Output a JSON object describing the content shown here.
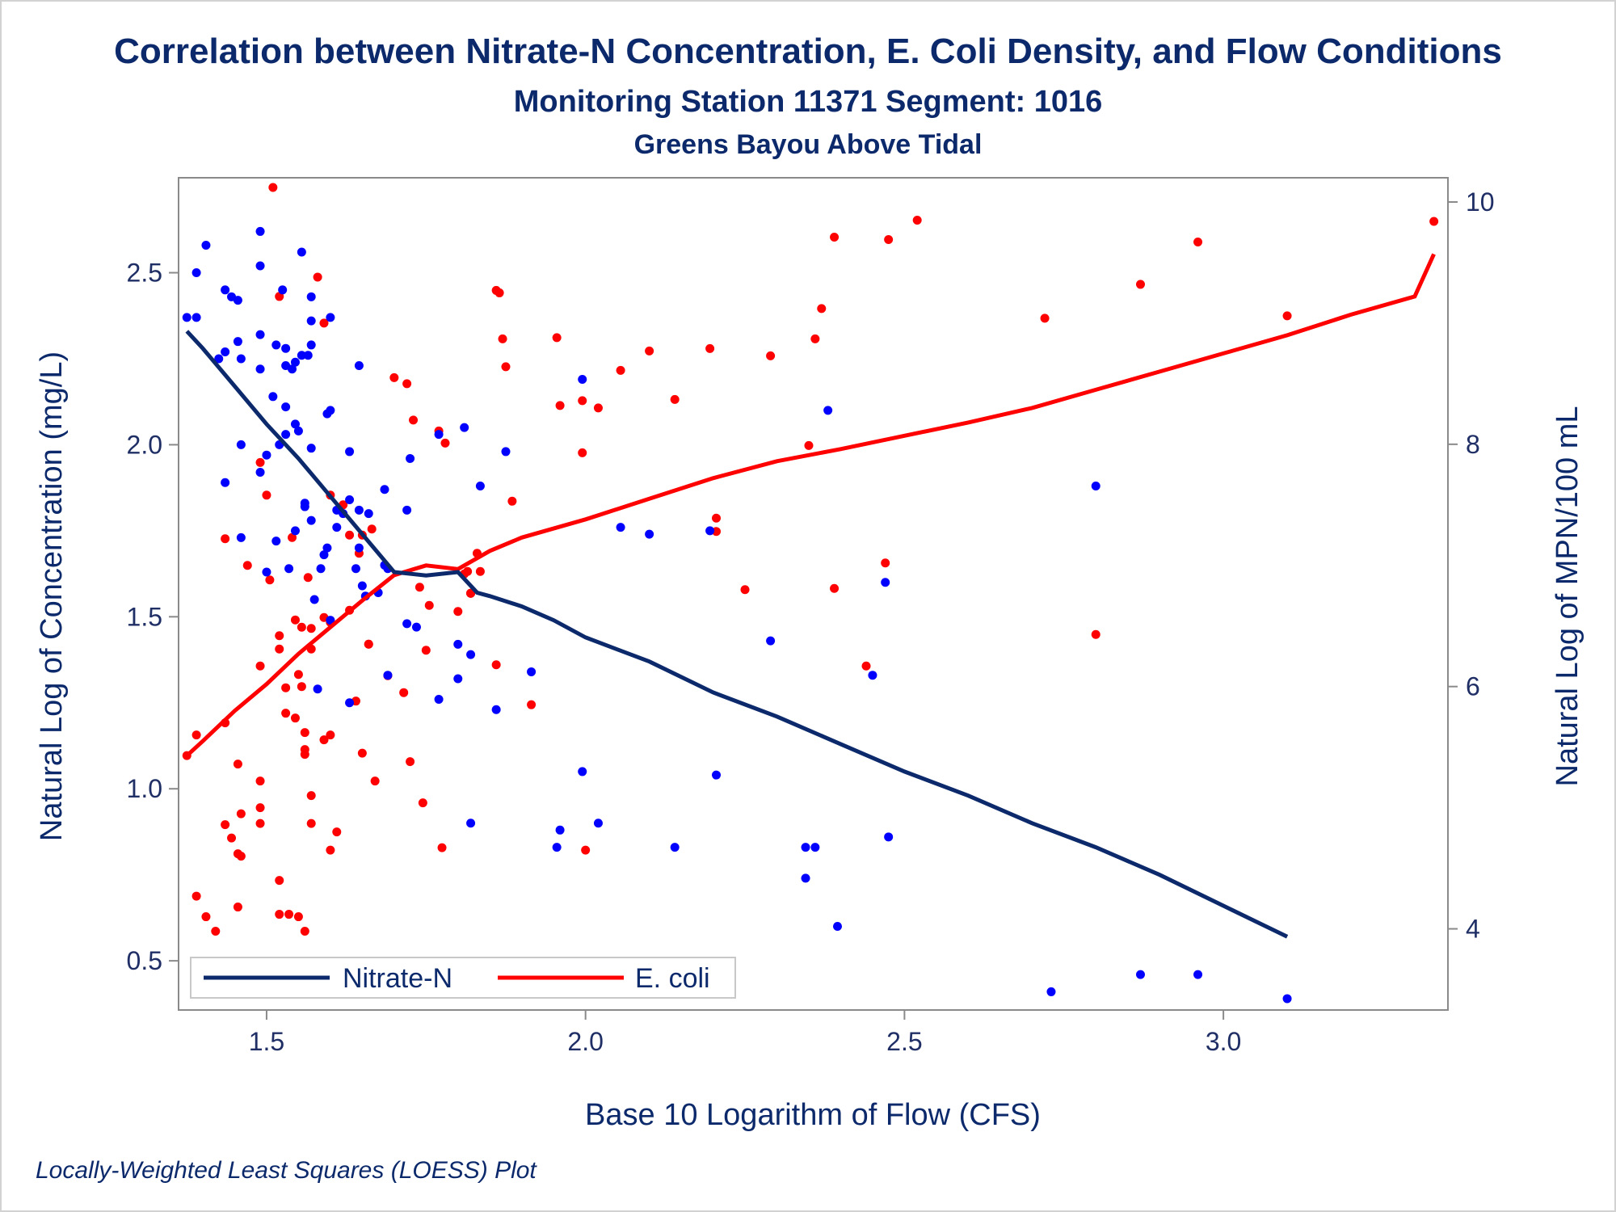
{
  "chart_data": {
    "type": "scatter",
    "title": "Correlation between Nitrate-N Concentration, E. Coli Density, and Flow Conditions",
    "subtitle": "Monitoring Station 11371 Segment: 1016",
    "subtitle2": "Greens Bayou Above Tidal",
    "xlabel": "Base 10 Logarithm of Flow (CFS)",
    "ylabel_left": "Natural Log of Concentration (mg/L)",
    "ylabel_right": "Natural Log of MPN/100 mL",
    "footnote": "Locally-Weighted Least Squares (LOESS) Plot",
    "xlim": [
      1.362,
      3.352
    ],
    "ylim_left": [
      0.357,
      2.776
    ],
    "ylim_right": [
      3.33,
      10.2
    ],
    "xticks": [
      "1.5",
      "2.0",
      "2.5",
      "3.0"
    ],
    "yticks_left": [
      "0.5",
      "1.0",
      "1.5",
      "2.0",
      "2.5"
    ],
    "yticks_right": [
      "4",
      "6",
      "8",
      "10"
    ],
    "colors": {
      "nitrate": "#0000ff",
      "nitrate_line": "#0c2a6b",
      "ecoli": "#ff0000",
      "ecoli_line": "#ff0000",
      "text": "#0c2a6b"
    },
    "legend": {
      "placement": "bottom-left",
      "entries": [
        "Nitrate-N",
        "E. coli"
      ]
    },
    "series": [
      {
        "name": "Nitrate-N",
        "axis": "left",
        "points": [
          [
            1.375,
            2.37
          ],
          [
            1.39,
            2.37
          ],
          [
            1.39,
            2.5
          ],
          [
            1.405,
            2.58
          ],
          [
            1.425,
            2.25
          ],
          [
            1.435,
            2.27
          ],
          [
            1.435,
            2.45
          ],
          [
            1.445,
            2.43
          ],
          [
            1.455,
            2.42
          ],
          [
            1.455,
            2.3
          ],
          [
            1.46,
            2.25
          ],
          [
            1.46,
            2.0
          ],
          [
            1.46,
            1.73
          ],
          [
            1.435,
            1.89
          ],
          [
            1.49,
            2.32
          ],
          [
            1.49,
            2.22
          ],
          [
            1.49,
            2.62
          ],
          [
            1.49,
            2.52
          ],
          [
            1.49,
            1.92
          ],
          [
            1.5,
            1.97
          ],
          [
            1.5,
            1.63
          ],
          [
            1.51,
            2.14
          ],
          [
            1.515,
            2.29
          ],
          [
            1.515,
            1.72
          ],
          [
            1.52,
            2.0
          ],
          [
            1.525,
            2.45
          ],
          [
            1.53,
            2.28
          ],
          [
            1.53,
            2.23
          ],
          [
            1.53,
            2.11
          ],
          [
            1.53,
            2.03
          ],
          [
            1.535,
            1.64
          ],
          [
            1.54,
            2.22
          ],
          [
            1.545,
            2.24
          ],
          [
            1.545,
            2.06
          ],
          [
            1.545,
            1.75
          ],
          [
            1.55,
            2.04
          ],
          [
            1.555,
            2.26
          ],
          [
            1.555,
            2.56
          ],
          [
            1.56,
            1.83
          ],
          [
            1.56,
            1.82
          ],
          [
            1.565,
            2.26
          ],
          [
            1.57,
            2.43
          ],
          [
            1.57,
            2.36
          ],
          [
            1.57,
            2.29
          ],
          [
            1.57,
            1.78
          ],
          [
            1.57,
            1.99
          ],
          [
            1.575,
            1.55
          ],
          [
            1.58,
            1.29
          ],
          [
            1.585,
            1.64
          ],
          [
            1.59,
            1.68
          ],
          [
            1.595,
            1.7
          ],
          [
            1.595,
            2.09
          ],
          [
            1.6,
            2.1
          ],
          [
            1.6,
            2.37
          ],
          [
            1.6,
            1.49
          ],
          [
            1.61,
            1.81
          ],
          [
            1.61,
            1.76
          ],
          [
            1.62,
            1.8
          ],
          [
            1.63,
            1.84
          ],
          [
            1.63,
            1.98
          ],
          [
            1.63,
            1.25
          ],
          [
            1.64,
            1.64
          ],
          [
            1.645,
            2.23
          ],
          [
            1.645,
            1.7
          ],
          [
            1.645,
            1.81
          ],
          [
            1.65,
            1.59
          ],
          [
            1.655,
            1.56
          ],
          [
            1.66,
            1.8
          ],
          [
            1.675,
            1.57
          ],
          [
            1.685,
            1.87
          ],
          [
            1.685,
            1.65
          ],
          [
            1.69,
            1.64
          ],
          [
            1.69,
            1.33
          ],
          [
            1.72,
            1.48
          ],
          [
            1.72,
            1.81
          ],
          [
            1.725,
            1.96
          ],
          [
            1.735,
            1.47
          ],
          [
            1.77,
            1.26
          ],
          [
            1.77,
            2.03
          ],
          [
            1.8,
            1.42
          ],
          [
            1.8,
            1.32
          ],
          [
            1.81,
            2.05
          ],
          [
            1.82,
            1.39
          ],
          [
            1.82,
            0.9
          ],
          [
            1.835,
            1.88
          ],
          [
            1.86,
            1.23
          ],
          [
            1.875,
            1.98
          ],
          [
            1.915,
            1.34
          ],
          [
            1.955,
            0.83
          ],
          [
            1.96,
            0.88
          ],
          [
            1.995,
            1.05
          ],
          [
            1.995,
            2.19
          ],
          [
            2.02,
            0.9
          ],
          [
            2.055,
            1.76
          ],
          [
            2.1,
            1.74
          ],
          [
            2.14,
            0.83
          ],
          [
            2.195,
            1.75
          ],
          [
            2.205,
            1.04
          ],
          [
            2.29,
            1.43
          ],
          [
            2.345,
            0.74
          ],
          [
            2.345,
            0.83
          ],
          [
            2.36,
            0.83
          ],
          [
            2.38,
            2.1
          ],
          [
            2.395,
            0.6
          ],
          [
            2.45,
            1.33
          ],
          [
            2.47,
            1.6
          ],
          [
            2.475,
            0.86
          ],
          [
            2.73,
            0.41
          ],
          [
            2.8,
            1.88
          ],
          [
            2.87,
            0.46
          ],
          [
            2.96,
            0.46
          ],
          [
            3.1,
            0.39
          ]
        ],
        "loess": [
          [
            1.375,
            2.33
          ],
          [
            1.4,
            2.28
          ],
          [
            1.45,
            2.17
          ],
          [
            1.5,
            2.06
          ],
          [
            1.55,
            1.96
          ],
          [
            1.6,
            1.85
          ],
          [
            1.65,
            1.74
          ],
          [
            1.7,
            1.63
          ],
          [
            1.75,
            1.62
          ],
          [
            1.8,
            1.63
          ],
          [
            1.83,
            1.57
          ],
          [
            1.85,
            1.56
          ],
          [
            1.9,
            1.53
          ],
          [
            1.95,
            1.49
          ],
          [
            2.0,
            1.44
          ],
          [
            2.1,
            1.37
          ],
          [
            2.2,
            1.28
          ],
          [
            2.3,
            1.21
          ],
          [
            2.4,
            1.13
          ],
          [
            2.5,
            1.05
          ],
          [
            2.6,
            0.98
          ],
          [
            2.7,
            0.9
          ],
          [
            2.8,
            0.83
          ],
          [
            2.9,
            0.75
          ],
          [
            3.0,
            0.66
          ],
          [
            3.1,
            0.57
          ]
        ]
      },
      {
        "name": "E. coli",
        "axis": "right",
        "points": [
          [
            1.375,
            5.43
          ],
          [
            1.39,
            5.6
          ],
          [
            1.39,
            4.27
          ],
          [
            1.405,
            4.1
          ],
          [
            1.42,
            3.98
          ],
          [
            1.435,
            4.86
          ],
          [
            1.435,
            5.7
          ],
          [
            1.435,
            7.22
          ],
          [
            1.445,
            4.75
          ],
          [
            1.455,
            5.36
          ],
          [
            1.455,
            4.18
          ],
          [
            1.455,
            4.62
          ],
          [
            1.46,
            4.95
          ],
          [
            1.46,
            4.6
          ],
          [
            1.47,
            7.0
          ],
          [
            1.49,
            5.0
          ],
          [
            1.49,
            5.22
          ],
          [
            1.49,
            4.87
          ],
          [
            1.49,
            6.17
          ],
          [
            1.49,
            7.85
          ],
          [
            1.5,
            7.58
          ],
          [
            1.505,
            6.88
          ],
          [
            1.51,
            10.12
          ],
          [
            1.52,
            9.22
          ],
          [
            1.52,
            6.42
          ],
          [
            1.52,
            6.31
          ],
          [
            1.52,
            4.4
          ],
          [
            1.52,
            4.12
          ],
          [
            1.53,
            5.99
          ],
          [
            1.53,
            5.78
          ],
          [
            1.535,
            4.12
          ],
          [
            1.54,
            7.23
          ],
          [
            1.545,
            6.55
          ],
          [
            1.545,
            5.74
          ],
          [
            1.55,
            6.1
          ],
          [
            1.55,
            4.1
          ],
          [
            1.555,
            6.49
          ],
          [
            1.555,
            6.0
          ],
          [
            1.56,
            5.62
          ],
          [
            1.56,
            5.44
          ],
          [
            1.56,
            5.48
          ],
          [
            1.56,
            3.98
          ],
          [
            1.565,
            6.9
          ],
          [
            1.57,
            6.31
          ],
          [
            1.57,
            6.48
          ],
          [
            1.57,
            5.1
          ],
          [
            1.57,
            4.87
          ],
          [
            1.58,
            9.38
          ],
          [
            1.59,
            6.57
          ],
          [
            1.59,
            5.56
          ],
          [
            1.59,
            9.0
          ],
          [
            1.6,
            7.58
          ],
          [
            1.6,
            6.53
          ],
          [
            1.6,
            5.6
          ],
          [
            1.6,
            4.65
          ],
          [
            1.61,
            4.8
          ],
          [
            1.62,
            7.5
          ],
          [
            1.63,
            6.63
          ],
          [
            1.63,
            7.25
          ],
          [
            1.64,
            5.88
          ],
          [
            1.645,
            7.1
          ],
          [
            1.65,
            7.25
          ],
          [
            1.65,
            5.45
          ],
          [
            1.66,
            6.35
          ],
          [
            1.66,
            6.35
          ],
          [
            1.665,
            7.3
          ],
          [
            1.67,
            5.22
          ],
          [
            1.69,
            6.09
          ],
          [
            1.7,
            8.55
          ],
          [
            1.715,
            5.95
          ],
          [
            1.72,
            8.5
          ],
          [
            1.725,
            5.38
          ],
          [
            1.73,
            8.2
          ],
          [
            1.74,
            6.82
          ],
          [
            1.745,
            5.04
          ],
          [
            1.75,
            6.3
          ],
          [
            1.755,
            6.67
          ],
          [
            1.77,
            8.11
          ],
          [
            1.775,
            4.67
          ],
          [
            1.78,
            8.01
          ],
          [
            1.8,
            6.62
          ],
          [
            1.81,
            6.93
          ],
          [
            1.815,
            6.95
          ],
          [
            1.82,
            6.77
          ],
          [
            1.82,
            6.77
          ],
          [
            1.82,
            6.77
          ],
          [
            1.83,
            7.1
          ],
          [
            1.835,
            6.95
          ],
          [
            1.86,
            6.18
          ],
          [
            1.86,
            9.27
          ],
          [
            1.865,
            9.25
          ],
          [
            1.87,
            8.87
          ],
          [
            1.875,
            8.64
          ],
          [
            1.885,
            7.53
          ],
          [
            1.915,
            5.85
          ],
          [
            1.955,
            8.88
          ],
          [
            1.96,
            8.32
          ],
          [
            1.995,
            7.93
          ],
          [
            1.995,
            8.36
          ],
          [
            2.0,
            4.65
          ],
          [
            2.02,
            8.3
          ],
          [
            2.055,
            8.61
          ],
          [
            2.1,
            8.77
          ],
          [
            2.14,
            8.37
          ],
          [
            2.195,
            8.79
          ],
          [
            2.205,
            7.28
          ],
          [
            2.205,
            7.39
          ],
          [
            2.25,
            6.8
          ],
          [
            2.29,
            8.73
          ],
          [
            2.35,
            7.99
          ],
          [
            2.36,
            8.87
          ],
          [
            2.37,
            9.12
          ],
          [
            2.39,
            6.81
          ],
          [
            2.39,
            9.71
          ],
          [
            2.44,
            6.17
          ],
          [
            2.47,
            7.02
          ],
          [
            2.475,
            9.69
          ],
          [
            2.52,
            9.85
          ],
          [
            2.72,
            9.04
          ],
          [
            2.8,
            6.43
          ],
          [
            2.87,
            9.32
          ],
          [
            2.96,
            9.67
          ],
          [
            3.1,
            9.06
          ],
          [
            3.33,
            9.84
          ]
        ],
        "loess": [
          [
            1.375,
            5.43
          ],
          [
            1.4,
            5.55
          ],
          [
            1.45,
            5.8
          ],
          [
            1.5,
            6.02
          ],
          [
            1.55,
            6.27
          ],
          [
            1.6,
            6.49
          ],
          [
            1.65,
            6.71
          ],
          [
            1.7,
            6.92
          ],
          [
            1.75,
            7.0
          ],
          [
            1.8,
            6.97
          ],
          [
            1.85,
            7.12
          ],
          [
            1.9,
            7.23
          ],
          [
            2.0,
            7.38
          ],
          [
            2.1,
            7.55
          ],
          [
            2.2,
            7.72
          ],
          [
            2.3,
            7.86
          ],
          [
            2.4,
            7.96
          ],
          [
            2.5,
            8.07
          ],
          [
            2.6,
            8.18
          ],
          [
            2.7,
            8.3
          ],
          [
            2.8,
            8.45
          ],
          [
            2.9,
            8.6
          ],
          [
            3.0,
            8.75
          ],
          [
            3.1,
            8.9
          ],
          [
            3.2,
            9.07
          ],
          [
            3.3,
            9.22
          ],
          [
            3.33,
            9.57
          ]
        ]
      }
    ]
  }
}
